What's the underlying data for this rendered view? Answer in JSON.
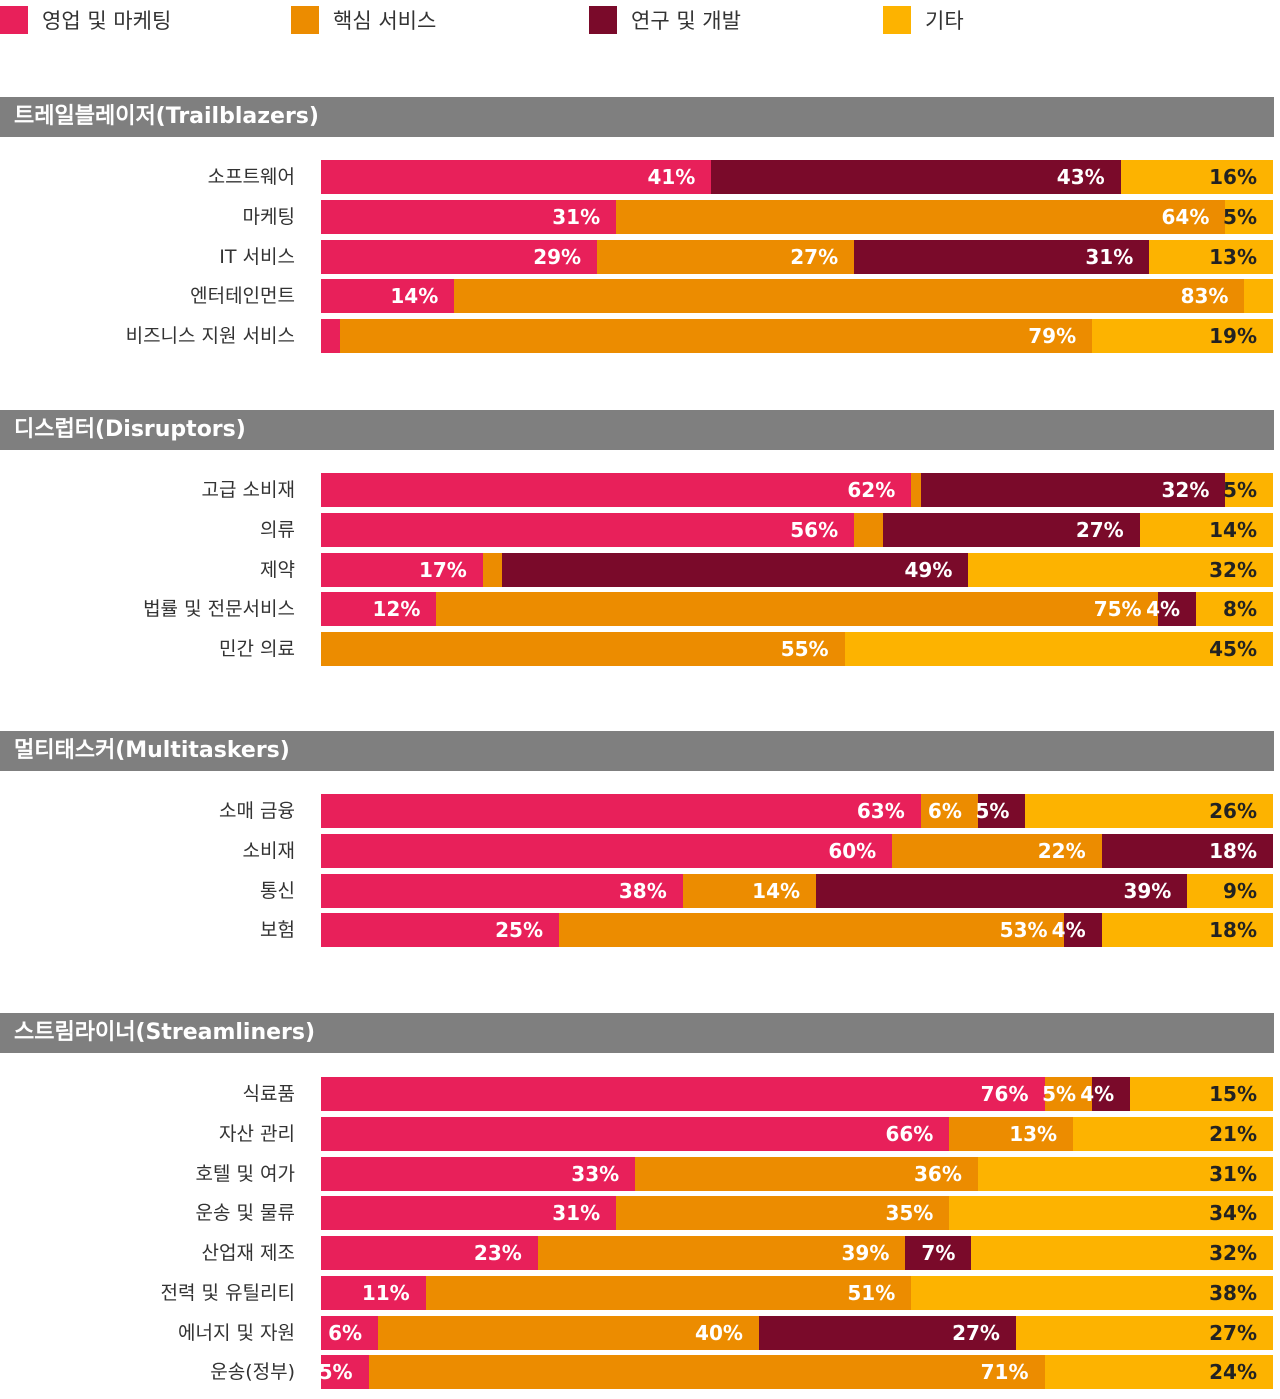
{
  "colors": {
    "sales": "#e8205a",
    "core": "#ec8c00",
    "rnd": "#7a0a2a",
    "other": "#fdb300"
  },
  "legend": [
    {
      "key": "sales",
      "label": "영업 및 마케팅"
    },
    {
      "key": "core",
      "label": "핵심 서비스"
    },
    {
      "key": "rnd",
      "label": "연구 및 개발"
    },
    {
      "key": "other",
      "label": "기타"
    }
  ],
  "chart_data": {
    "type": "bar",
    "orientation": "horizontal",
    "stacked": true,
    "xlim": [
      0,
      100
    ],
    "series": [
      "영업 및 마케팅",
      "핵심 서비스",
      "연구 및 개발",
      "기타"
    ],
    "groups": [
      {
        "title": "트레일블레이저(Trailblazers)",
        "rows": [
          {
            "label": "소프트웨어",
            "values": [
              41,
              0,
              43,
              16
            ],
            "labels": [
              "41%",
              "",
              "43%",
              "16%"
            ]
          },
          {
            "label": "마케팅",
            "values": [
              31,
              64,
              0,
              5
            ],
            "labels": [
              "31%",
              "64%",
              "",
              "5%"
            ]
          },
          {
            "label": "IT 서비스",
            "values": [
              29,
              27,
              31,
              13
            ],
            "labels": [
              "29%",
              "27%",
              "31%",
              "13%"
            ]
          },
          {
            "label": "엔터테인먼트",
            "values": [
              14,
              83,
              0,
              3
            ],
            "labels": [
              "14%",
              "83%",
              "",
              ""
            ]
          },
          {
            "label": "비즈니스 지원 서비스",
            "values": [
              2,
              79,
              0,
              19
            ],
            "labels": [
              "",
              "79%",
              "",
              "19%"
            ]
          }
        ]
      },
      {
        "title": "디스럽터(Disruptors)",
        "rows": [
          {
            "label": "고급 소비재",
            "values": [
              62,
              1,
              32,
              5
            ],
            "labels": [
              "62%",
              "",
              "32%",
              "5%"
            ]
          },
          {
            "label": "의류",
            "values": [
              56,
              3,
              27,
              14
            ],
            "labels": [
              "56%",
              "",
              "27%",
              "14%"
            ]
          },
          {
            "label": "제약",
            "values": [
              17,
              2,
              49,
              32
            ],
            "labels": [
              "17%",
              "",
              "49%",
              "32%"
            ]
          },
          {
            "label": "법률 및 전문서비스",
            "values": [
              12,
              75,
              4,
              8
            ],
            "labels": [
              "12%",
              "75%",
              "4%",
              "8%"
            ]
          },
          {
            "label": "민간 의료",
            "values": [
              0,
              55,
              0,
              45
            ],
            "labels": [
              "",
              "55%",
              "",
              "45%"
            ]
          }
        ]
      },
      {
        "title": "멀티태스커(Multitaskers)",
        "rows": [
          {
            "label": "소매 금융",
            "values": [
              63,
              6,
              5,
              26
            ],
            "labels": [
              "63%",
              "6%",
              "5%",
              "26%"
            ]
          },
          {
            "label": "소비재",
            "values": [
              60,
              22,
              18,
              0
            ],
            "labels": [
              "60%",
              "22%",
              "18%",
              ""
            ]
          },
          {
            "label": "통신",
            "values": [
              38,
              14,
              39,
              9
            ],
            "labels": [
              "38%",
              "14%",
              "39%",
              "9%"
            ]
          },
          {
            "label": "보험",
            "values": [
              25,
              53,
              4,
              18
            ],
            "labels": [
              "25%",
              "53%",
              "4%",
              "18%"
            ]
          }
        ]
      },
      {
        "title": "스트림라이너(Streamliners)",
        "rows": [
          {
            "label": "식료품",
            "values": [
              76,
              5,
              4,
              15
            ],
            "labels": [
              "76%",
              "5%",
              "4%",
              "15%"
            ]
          },
          {
            "label": "자산 관리",
            "values": [
              66,
              13,
              0,
              21
            ],
            "labels": [
              "66%",
              "13%",
              "",
              "21%"
            ]
          },
          {
            "label": "호텔 및 여가",
            "values": [
              33,
              36,
              0,
              31
            ],
            "labels": [
              "33%",
              "36%",
              "",
              "31%"
            ]
          },
          {
            "label": "운송 및 물류",
            "values": [
              31,
              35,
              0,
              34
            ],
            "labels": [
              "31%",
              "35%",
              "",
              "34%"
            ]
          },
          {
            "label": "산업재 제조",
            "values": [
              23,
              39,
              7,
              32
            ],
            "labels": [
              "23%",
              "39%",
              "7%",
              "32%"
            ]
          },
          {
            "label": "전력 및 유틸리티",
            "values": [
              11,
              51,
              0,
              38
            ],
            "labels": [
              "11%",
              "51%",
              "",
              "38%"
            ]
          },
          {
            "label": "에너지 및 자원",
            "values": [
              6,
              40,
              27,
              27
            ],
            "labels": [
              "6%",
              "40%",
              "27%",
              "27%"
            ]
          },
          {
            "label": "운송(정부)",
            "values": [
              5,
              71,
              0,
              24
            ],
            "labels": [
              "5%",
              "71%",
              "",
              "24%"
            ]
          }
        ]
      }
    ]
  }
}
